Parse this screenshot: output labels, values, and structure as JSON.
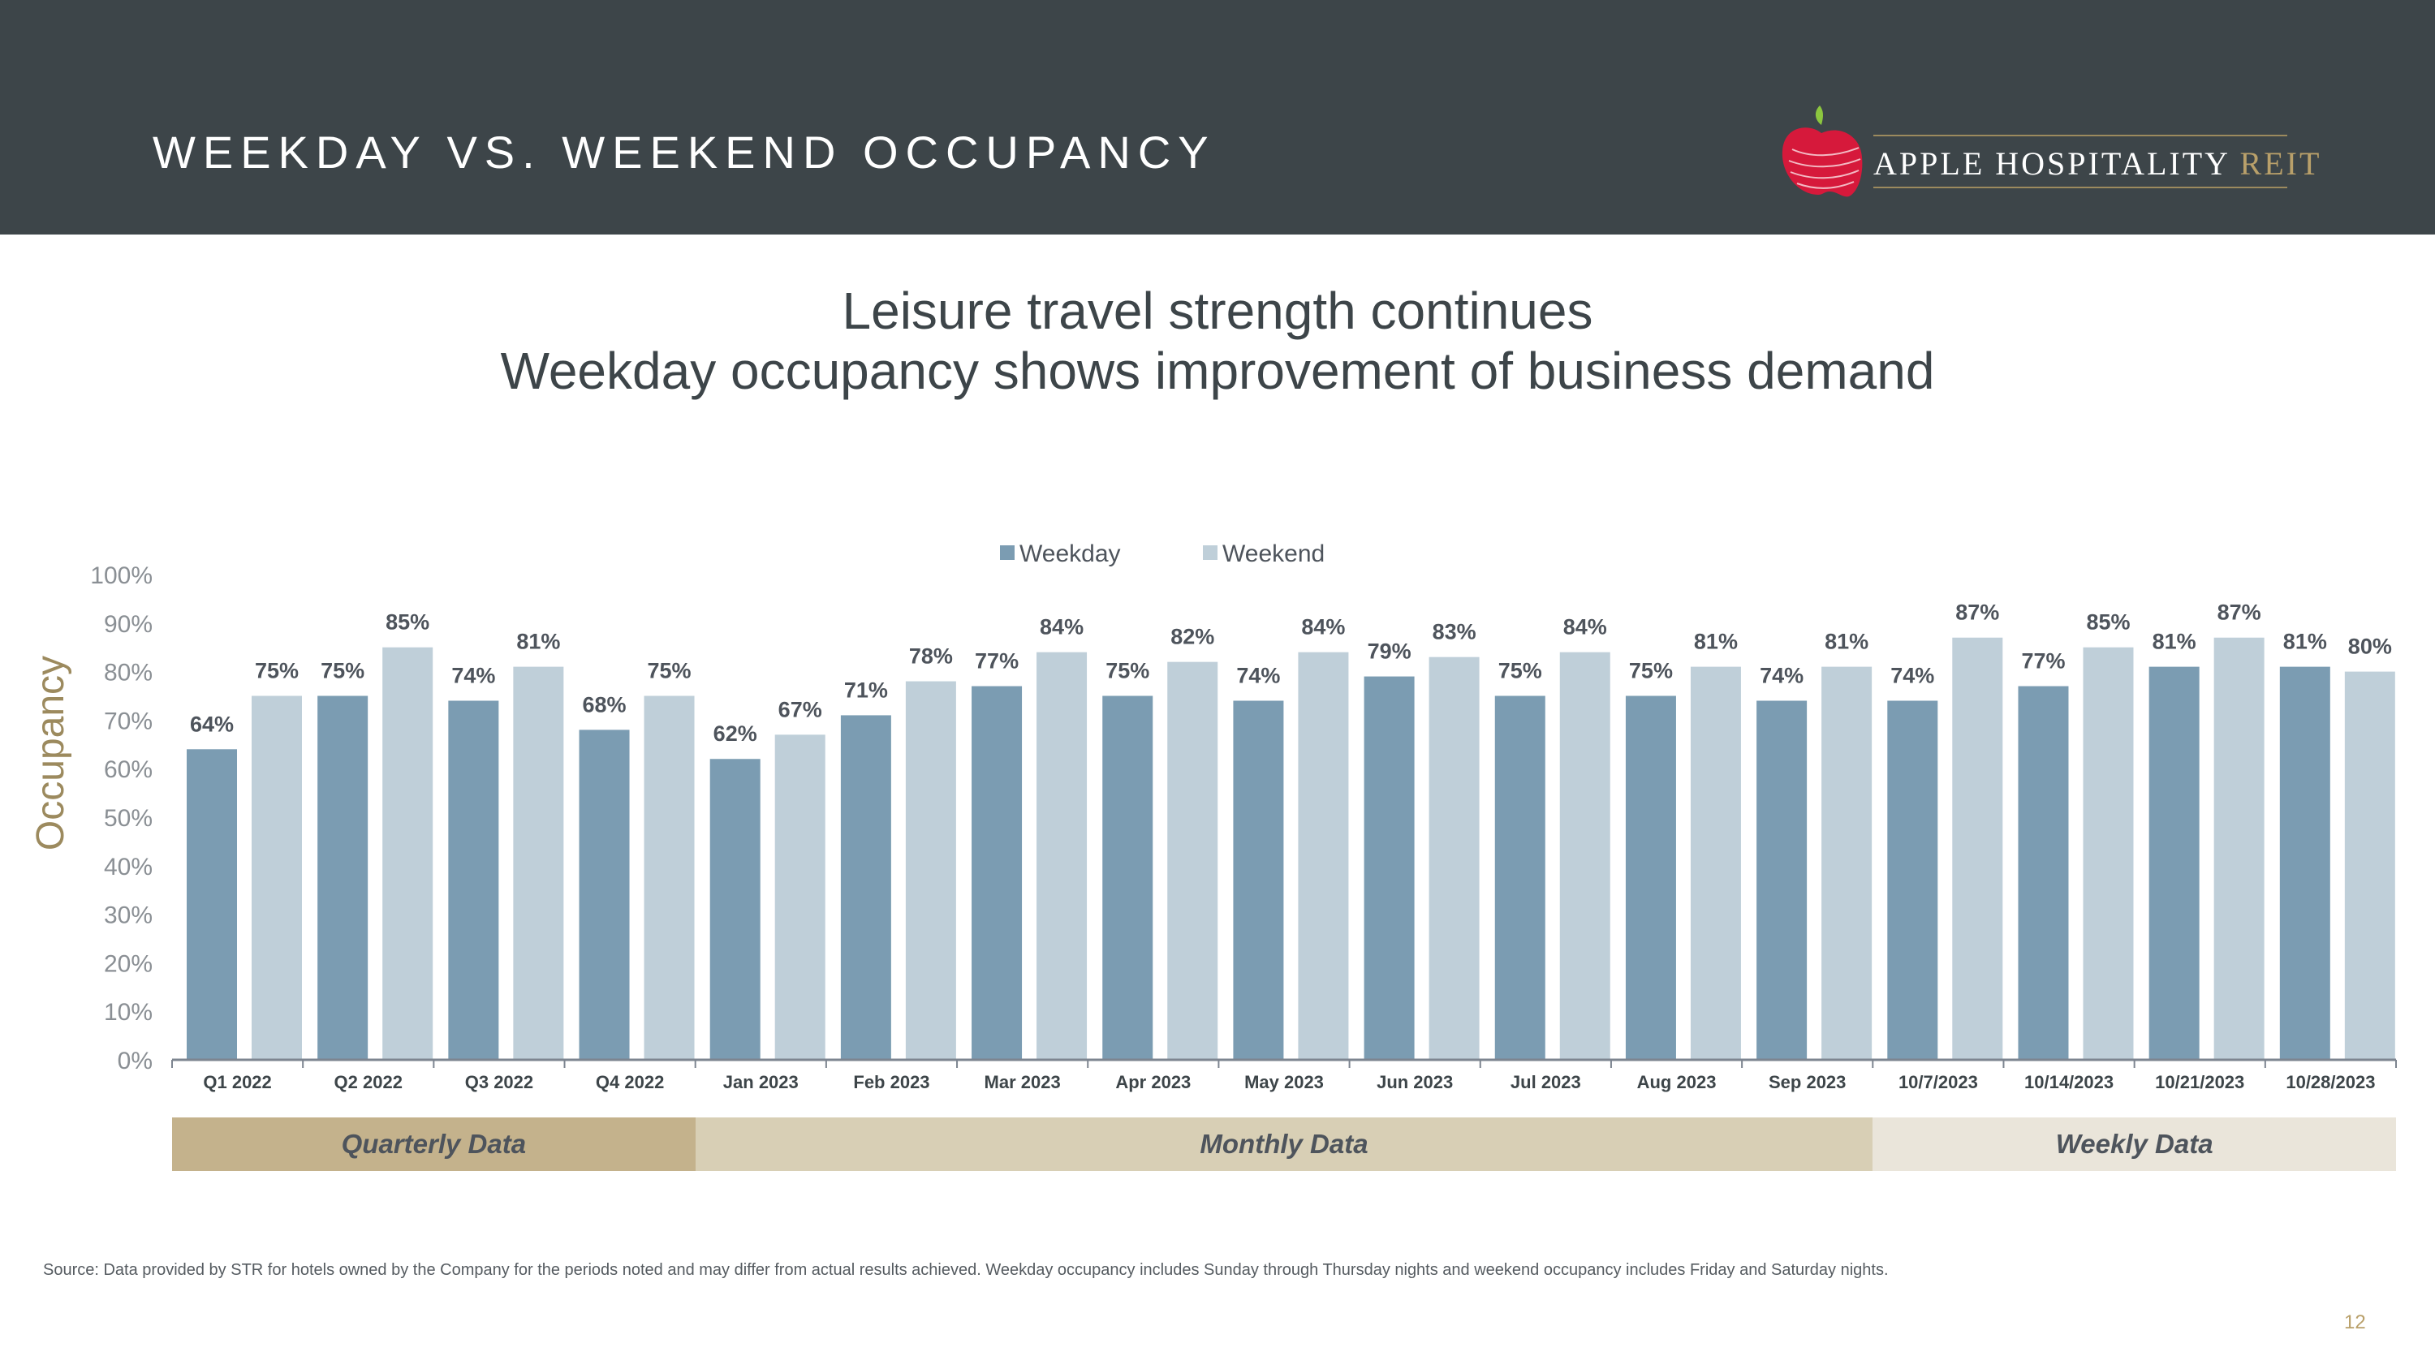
{
  "header": {
    "title": "WEEKDAY VS. WEEKEND OCCUPANCY",
    "logo_text": "APPLE HOSPITALITY",
    "logo_text_accent": "REIT"
  },
  "subtitle": {
    "line1": "Leisure travel strength continues",
    "line2": "Weekday occupancy shows improvement of business demand"
  },
  "chart_data": {
    "type": "bar",
    "ylabel": "Occupancy",
    "ylim": [
      0,
      100
    ],
    "yticks": [
      "0%",
      "10%",
      "20%",
      "30%",
      "40%",
      "50%",
      "60%",
      "70%",
      "80%",
      "90%",
      "100%"
    ],
    "grid": false,
    "legend_position": "top-center",
    "categories": [
      "Q1 2022",
      "Q2 2022",
      "Q3 2022",
      "Q4 2022",
      "Jan 2023",
      "Feb 2023",
      "Mar 2023",
      "Apr 2023",
      "May 2023",
      "Jun 2023",
      "Jul 2023",
      "Aug 2023",
      "Sep 2023",
      "10/7/2023",
      "10/14/2023",
      "10/21/2023",
      "10/28/2023"
    ],
    "series": [
      {
        "name": "Weekday",
        "color": "#7b9cb2",
        "values": [
          64,
          75,
          74,
          68,
          62,
          71,
          77,
          75,
          74,
          79,
          75,
          75,
          74,
          74,
          77,
          81,
          81
        ]
      },
      {
        "name": "Weekend",
        "color": "#bfcfd9",
        "values": [
          75,
          85,
          81,
          75,
          67,
          78,
          84,
          82,
          84,
          83,
          84,
          81,
          81,
          87,
          85,
          87,
          80
        ]
      }
    ],
    "data_label_format": "{v}%",
    "groups": [
      {
        "label": "Quarterly Data",
        "from": 0,
        "to": 3,
        "color": "#c4b28c"
      },
      {
        "label": "Monthly Data",
        "from": 4,
        "to": 12,
        "color": "#d8cfb5"
      },
      {
        "label": "Weekly Data",
        "from": 13,
        "to": 16,
        "color": "#eae5da"
      }
    ]
  },
  "footer": {
    "source": "Source:  Data provided by STR for hotels owned by the Company for the periods noted and may differ from actual results achieved. Weekday occupancy includes Sunday through Thursday nights and weekend occupancy includes Friday and Saturday nights.",
    "page_number": "12"
  },
  "colors": {
    "header_bg": "#3d4549",
    "accent_gold": "#b9a06a",
    "axis_label": "#9c8a5e",
    "tick_label": "#8a8f94",
    "data_label": "#4e545c"
  }
}
